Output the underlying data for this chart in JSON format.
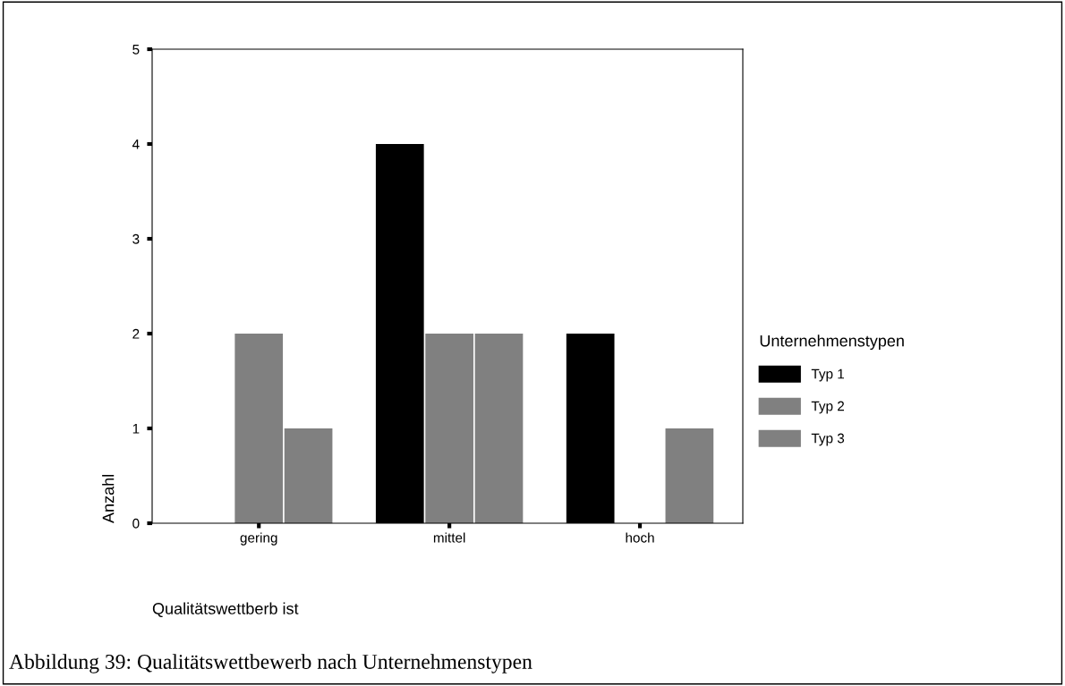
{
  "chart_data": {
    "type": "bar",
    "categories": [
      "gering",
      "mittel",
      "hoch"
    ],
    "series": [
      {
        "name": "Typ 1",
        "color": "#000000",
        "values": [
          0,
          4,
          2
        ]
      },
      {
        "name": "Typ 2",
        "color": "#808080",
        "values": [
          2,
          2,
          0
        ]
      },
      {
        "name": "Typ 3",
        "color": "#808080",
        "values": [
          1,
          2,
          1
        ]
      }
    ],
    "xlabel": "Qualitätswettberb ist",
    "ylabel": "Anzahl",
    "legend_title": "Unternehmenstypen",
    "ylim": [
      0,
      5
    ],
    "yticks": [
      0,
      1,
      2,
      3,
      4,
      5
    ],
    "grid": false,
    "legend": "right",
    "annotations": [
      "Abbildung 39: Qualitätswettbewerb nach Unternehmenstypen"
    ]
  }
}
